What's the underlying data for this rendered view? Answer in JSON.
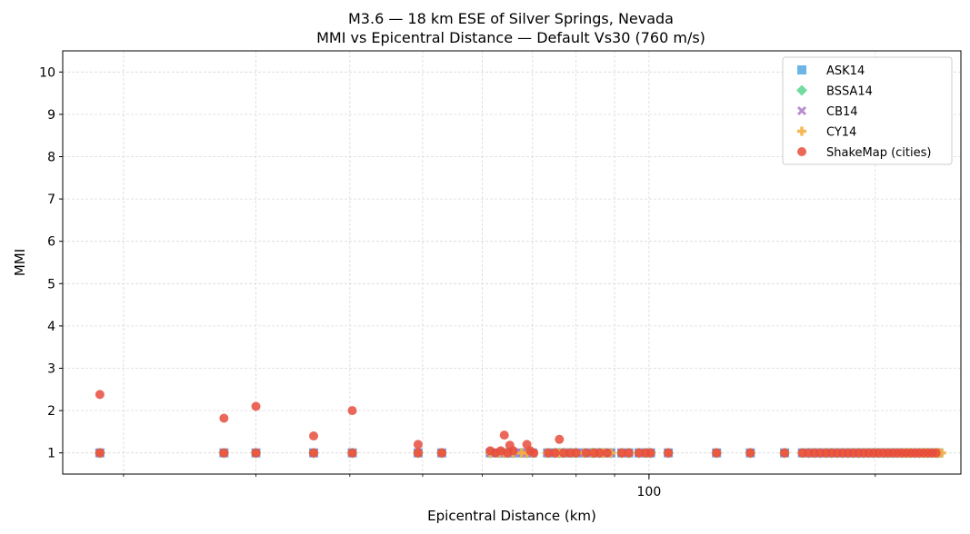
{
  "chart_data": {
    "type": "scatter",
    "title": "M3.6 — 18 km ESE of Silver Springs, Nevada",
    "subtitle": "MMI vs Epicentral Distance — Default Vs30 (760 m/s)",
    "xlabel": "Epicentral Distance (km)",
    "ylabel": "MMI",
    "xscale": "log",
    "xlim": [
      16.6,
      260
    ],
    "ylim": [
      0.5,
      10.5
    ],
    "yticks": [
      "1",
      "2",
      "3",
      "4",
      "5",
      "6",
      "7",
      "8",
      "9",
      "10"
    ],
    "xticks": [
      {
        "value": 100,
        "label": "100"
      }
    ],
    "grid": true,
    "legend_position": "top-right",
    "colors": {
      "ASK14": "#5dade2",
      "BSSA14": "#58d68d",
      "CB14": "#af7ac5",
      "CY14": "#f5b041",
      "ShakeMap (cities)": "#e74c3c"
    },
    "gmpe_distances": [
      18.6,
      27.2,
      30.0,
      35.8,
      40.3,
      49.3,
      53.0,
      61.5,
      63.2,
      64.2,
      65.0,
      66.0,
      67.7,
      68.8,
      70.0,
      73.3,
      75.0,
      76.0,
      77.1,
      78.8,
      80.0,
      82.0,
      84.0,
      84.6,
      86.0,
      87.0,
      89.0,
      92.0,
      94.0,
      97.0,
      99.0,
      100.5,
      106.1,
      123.0,
      136.4,
      151.5,
      160,
      163,
      166,
      169,
      172,
      175,
      178,
      181,
      184,
      187,
      190,
      193,
      196,
      199,
      202,
      205,
      208,
      211,
      214,
      217,
      220,
      223,
      226,
      229,
      232,
      235,
      238,
      241,
      243
    ],
    "cy14_extra_distances": [
      218,
      222,
      226,
      230,
      234,
      238,
      242,
      245
    ],
    "series": [
      {
        "name": "ASK14",
        "marker": "square"
      },
      {
        "name": "BSSA14",
        "marker": "diamond"
      },
      {
        "name": "CB14",
        "marker": "x"
      },
      {
        "name": "CY14",
        "marker": "plus"
      },
      {
        "name": "ShakeMap (cities)",
        "marker": "circle",
        "points": [
          [
            18.6,
            2.38
          ],
          [
            18.6,
            1.0
          ],
          [
            27.2,
            1.82
          ],
          [
            27.2,
            1.0
          ],
          [
            30.0,
            2.1
          ],
          [
            30.0,
            1.0
          ],
          [
            35.8,
            1.4
          ],
          [
            35.8,
            1.0
          ],
          [
            40.3,
            2.0
          ],
          [
            40.3,
            1.0
          ],
          [
            49.3,
            1.2
          ],
          [
            49.3,
            1.0
          ],
          [
            53.0,
            1.0
          ],
          [
            61.5,
            1.05
          ],
          [
            62.5,
            1.0
          ],
          [
            63.5,
            1.05
          ],
          [
            64.2,
            1.42
          ],
          [
            64.8,
            1.0
          ],
          [
            65.3,
            1.18
          ],
          [
            66.0,
            1.05
          ],
          [
            68.8,
            1.2
          ],
          [
            69.5,
            1.05
          ],
          [
            70.3,
            1.0
          ],
          [
            73.5,
            1.0
          ],
          [
            75.0,
            1.0
          ],
          [
            76.0,
            1.32
          ],
          [
            77.0,
            1.0
          ],
          [
            78.5,
            1.0
          ],
          [
            80.0,
            1.0
          ],
          [
            82.5,
            1.0
          ],
          [
            84.5,
            1.0
          ],
          [
            86.0,
            1.0
          ],
          [
            88.0,
            1.0
          ],
          [
            92.0,
            1.0
          ],
          [
            94.0,
            1.0
          ],
          [
            97.0,
            1.0
          ],
          [
            99.0,
            1.0
          ],
          [
            100.5,
            1.0
          ],
          [
            106.1,
            1.0
          ],
          [
            123.0,
            1.0
          ],
          [
            136.4,
            1.0
          ],
          [
            151.5,
            1.0
          ],
          [
            160,
            1.0
          ],
          [
            163,
            1.0
          ],
          [
            166,
            1.0
          ],
          [
            169,
            1.0
          ],
          [
            172,
            1.0
          ],
          [
            175,
            1.0
          ],
          [
            178,
            1.0
          ],
          [
            181,
            1.0
          ],
          [
            184,
            1.0
          ],
          [
            187,
            1.0
          ],
          [
            190,
            1.0
          ],
          [
            193,
            1.0
          ],
          [
            196,
            1.0
          ],
          [
            199,
            1.0
          ],
          [
            202,
            1.0
          ],
          [
            205,
            1.0
          ],
          [
            208,
            1.0
          ],
          [
            211,
            1.0
          ],
          [
            214,
            1.0
          ],
          [
            217,
            1.0
          ],
          [
            220,
            1.0
          ],
          [
            223,
            1.0
          ],
          [
            226,
            1.0
          ],
          [
            229,
            1.0
          ],
          [
            232,
            1.0
          ],
          [
            235,
            1.0
          ],
          [
            238,
            1.0
          ],
          [
            241,
            1.0
          ]
        ]
      }
    ]
  }
}
